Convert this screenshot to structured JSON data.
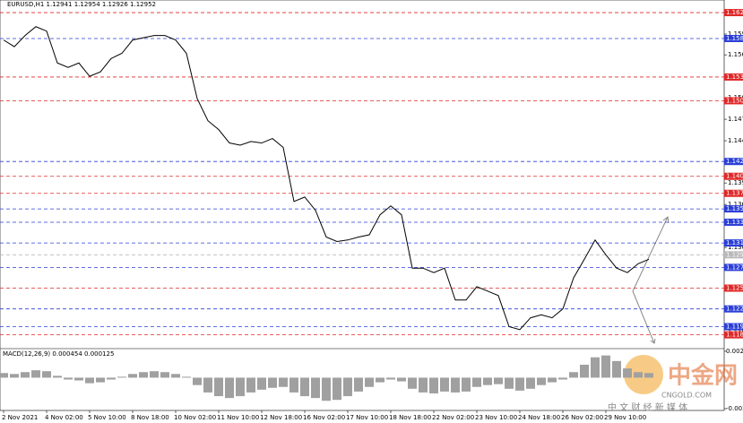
{
  "chart_data": [
    {
      "type": "line",
      "title": "EURUSD,H1  1.12941 1.12954 1.12926 1.12952",
      "categories": [
        "2 Nov 2021",
        null,
        null,
        null,
        "4 Nov 02:00",
        null,
        null,
        null,
        "5 Nov 10:00",
        null,
        null,
        null,
        "8 Nov 18:00",
        null,
        null,
        null,
        "10 Nov 02:00",
        null,
        null,
        null,
        "11 Nov 10:00",
        null,
        null,
        null,
        "12 Nov 18:00",
        null,
        null,
        null,
        "16 Nov 02:00",
        null,
        null,
        null,
        "17 Nov 10:00",
        null,
        null,
        null,
        "18 Nov 18:00",
        null,
        null,
        null,
        "22 Nov 02:00",
        null,
        null,
        null,
        "23 Nov 10:00",
        null,
        null,
        null,
        "24 Nov 18:00",
        null,
        null,
        null,
        "26 Nov 02:00",
        null,
        null,
        null,
        "29 Nov 10:00",
        null,
        null,
        null,
        null
      ],
      "values": [
        1.1585,
        1.1576,
        1.1591,
        1.1603,
        1.1597,
        1.1554,
        1.1548,
        1.1554,
        1.1536,
        1.1542,
        1.156,
        1.1567,
        1.1585,
        1.1588,
        1.1591,
        1.1591,
        1.1585,
        1.1567,
        1.1506,
        1.1476,
        1.1464,
        1.1446,
        1.1443,
        1.1448,
        1.1446,
        1.1452,
        1.144,
        1.1367,
        1.1373,
        1.1355,
        1.1319,
        1.1313,
        1.1315,
        1.1319,
        1.1322,
        1.1349,
        1.1361,
        1.1349,
        1.1277,
        1.1277,
        1.1271,
        1.1277,
        1.1234,
        1.1234,
        1.1252,
        1.1246,
        1.124,
        1.1198,
        1.1194,
        1.121,
        1.1214,
        1.121,
        1.1222,
        1.1264,
        1.1289,
        1.1315,
        1.1295,
        1.1277,
        1.1271,
        1.1283,
        1.1289
      ],
      "color": "#000000",
      "ylim": [
        1.1639,
        1.1172
      ],
      "yticks": [
        1.1593,
        1.1565,
        1.1507,
        1.1478,
        1.1449,
        1.1392,
        1.1363,
        1.1305,
        {
          "value": 1.119,
          "label": "1.1190"
        }
      ],
      "levels": [
        {
          "value": 1.1622,
          "label": "1.1622",
          "color": "#e02828"
        },
        {
          "value": 1.1587,
          "label": "1.1587",
          "color": "#2b3fd8"
        },
        {
          "value": 1.1535,
          "label": "1.1535",
          "color": "#e02828"
        },
        {
          "value": 1.1503,
          "label": "1.1503",
          "color": "#e02828"
        },
        {
          "value": 1.1421,
          "label": "1.1421",
          "color": "#2b3fd8"
        },
        {
          "value": 1.1401,
          "label": "1.1401",
          "color": "#e02828"
        },
        {
          "value": 1.1378,
          "label": "1.1378",
          "color": "#e02828"
        },
        {
          "value": 1.1357,
          "label": "1.1357",
          "color": "#2b3fd8"
        },
        {
          "value": 1.1339,
          "label": "1.1339",
          "color": "#2b3fd8"
        },
        {
          "value": 1.1311,
          "label": "1.1311",
          "color": "#2b3fd8"
        },
        {
          "value": 1.1295,
          "label": "1.1295",
          "color": "#b8b8b8"
        },
        {
          "value": 1.1278,
          "label": "1.1278",
          "color": "#2b3fd8"
        },
        {
          "value": 1.125,
          "label": "1.1250",
          "color": "#e02828"
        },
        {
          "value": 1.1222,
          "label": "1.1222",
          "color": "#2b3fd8"
        },
        {
          "value": 1.1198,
          "label": "1.1198",
          "color": "#2b3fd8"
        },
        {
          "value": 1.1187,
          "label": "1.1187",
          "color": "#e02828"
        }
      ]
    },
    {
      "type": "bar",
      "title": "MACD(12,26,9) 0.000454 0.000125",
      "values": [
        0.0005,
        0.0004,
        0.0006,
        0.0008,
        0.0007,
        0.0002,
        -0.0002,
        -0.0003,
        -0.0006,
        -0.0005,
        -0.0002,
        0.0001,
        0.0004,
        0.0006,
        0.0007,
        0.0006,
        0.0004,
        0.0001,
        -0.0008,
        -0.0016,
        -0.002,
        -0.0022,
        -0.002,
        -0.0016,
        -0.0013,
        -0.0011,
        -0.001,
        -0.0016,
        -0.002,
        -0.0022,
        -0.0025,
        -0.0024,
        -0.002,
        -0.0015,
        -0.001,
        -0.0005,
        -0.0002,
        -0.0004,
        -0.0012,
        -0.0016,
        -0.0017,
        -0.0015,
        -0.0016,
        -0.0015,
        -0.001,
        -0.0008,
        -0.0007,
        -0.0012,
        -0.0014,
        -0.0012,
        -0.0008,
        -0.0005,
        -0.0002,
        0.0006,
        0.0014,
        0.0022,
        0.0024,
        0.0018,
        0.001,
        0.0006,
        0.0005
      ],
      "color": "#a0a0a0",
      "ylim": [
        -0.00335,
        0.00285
      ],
      "yticks": [
        0.00285,
        -0.00335
      ]
    }
  ],
  "watermark": {
    "title": "中金网",
    "site": "CNGOLD.COM",
    "slogan": "中 文 财 经 新 媒 体"
  }
}
